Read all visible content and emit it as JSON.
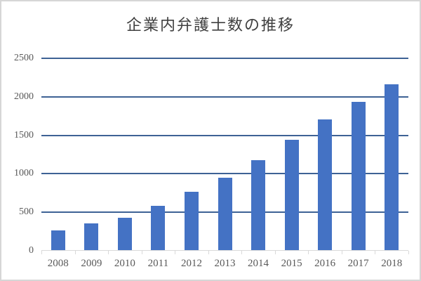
{
  "chart_data": {
    "type": "bar",
    "title": "企業内弁護士数の推移",
    "categories": [
      "2008",
      "2009",
      "2010",
      "2011",
      "2012",
      "2013",
      "2014",
      "2015",
      "2016",
      "2017",
      "2018"
    ],
    "values": [
      266,
      354,
      428,
      587,
      771,
      953,
      1179,
      1442,
      1707,
      1931,
      2161
    ],
    "xlabel": "",
    "ylabel": "",
    "ylim": [
      0,
      2500
    ],
    "yticks": [
      0,
      500,
      1000,
      1500,
      2000,
      2500
    ],
    "grid": true,
    "legend": "none",
    "colors": {
      "bar_fill": "#4472c4",
      "gridline": "#3e6295",
      "axis_line": "#d9d9d9",
      "tick_mark": "#d9d9d9",
      "title_text": "#404040",
      "tick_text": "#595959",
      "border": "#d6d6d6",
      "background": "#ffffff"
    }
  }
}
